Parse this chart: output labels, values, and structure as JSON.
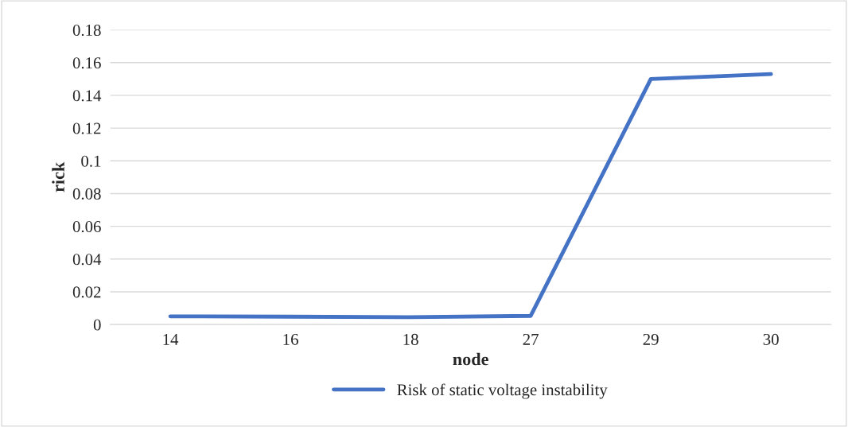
{
  "chart_data": {
    "type": "line",
    "xlabel": "node",
    "ylabel": "rick",
    "categories": [
      "14",
      "16",
      "18",
      "27",
      "29",
      "30"
    ],
    "series": [
      {
        "name": "Risk of static voltage instability",
        "color": "#4472c4",
        "values": [
          0.005,
          0.0048,
          0.0045,
          0.0053,
          0.15,
          0.153
        ]
      }
    ],
    "ylim": [
      0,
      0.18
    ],
    "yticks": [
      0,
      0.02,
      0.04,
      0.06,
      0.08,
      0.1,
      0.12,
      0.14,
      0.16,
      0.18
    ],
    "grid": "y",
    "legend": "bottom",
    "marker": "none",
    "line_style": "solid"
  }
}
